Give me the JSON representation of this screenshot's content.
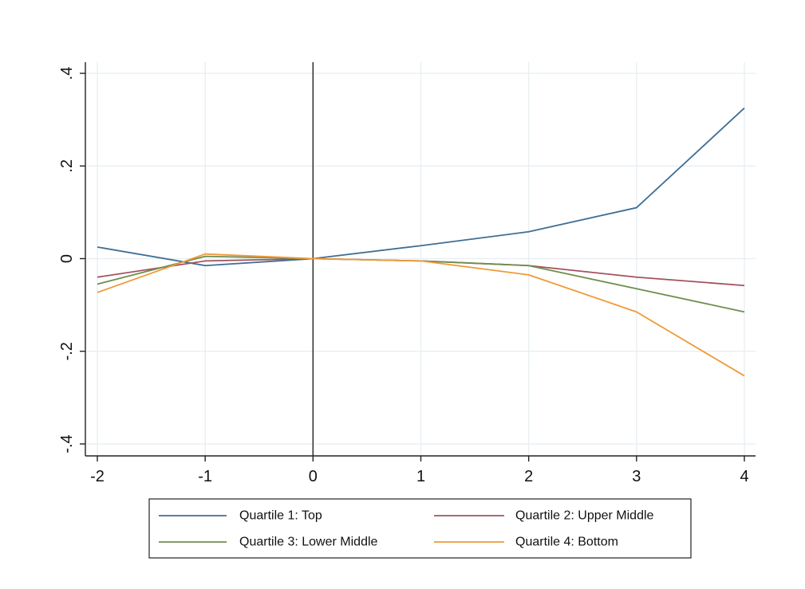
{
  "chart_data": {
    "type": "line",
    "x": [
      -2,
      -1,
      0,
      1,
      2,
      3,
      4
    ],
    "xlim": [
      -2,
      4
    ],
    "ylim": [
      -0.4,
      0.4
    ],
    "x_ticks": [
      -2,
      -1,
      0,
      1,
      2,
      3,
      4
    ],
    "x_tick_labels": [
      "-2",
      "-1",
      "0",
      "1",
      "2",
      "3",
      "4"
    ],
    "y_ticks": [
      -0.4,
      -0.2,
      0,
      0.2,
      0.4
    ],
    "y_tick_labels": [
      "-.4",
      "-.2",
      "0",
      ".2",
      ".4"
    ],
    "title": "",
    "xlabel": "",
    "ylabel": "",
    "grid": true,
    "reference_line_x": 0,
    "legend_position": "bottom",
    "series": [
      {
        "name": "Quartile 1: Top",
        "color": "#3f6e94",
        "values": [
          0.025,
          -0.015,
          0.0,
          0.028,
          0.058,
          0.11,
          0.325
        ]
      },
      {
        "name": "Quartile 2: Upper Middle",
        "color": "#a3525f",
        "values": [
          -0.04,
          -0.005,
          0.0,
          -0.005,
          -0.015,
          -0.04,
          -0.058
        ]
      },
      {
        "name": "Quartile 3: Lower Middle",
        "color": "#6f8e4e",
        "values": [
          -0.055,
          0.005,
          0.0,
          -0.005,
          -0.015,
          -0.065,
          -0.115
        ]
      },
      {
        "name": "Quartile 4: Bottom",
        "color": "#ef9a37",
        "values": [
          -0.073,
          0.01,
          0.0,
          -0.005,
          -0.035,
          -0.115,
          -0.253
        ]
      }
    ]
  }
}
